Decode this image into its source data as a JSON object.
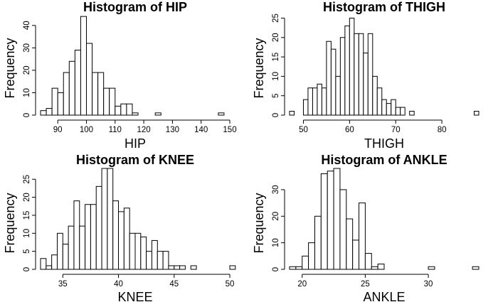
{
  "chart_data": [
    {
      "type": "bar",
      "title": "Histogram of HIP",
      "xlabel": "HIP",
      "ylabel": "Frequency",
      "bin_width": 2,
      "bin_start": 84,
      "values": [
        2,
        3,
        12,
        10,
        19,
        24,
        29,
        44,
        32,
        19,
        19,
        12,
        12,
        4,
        5,
        5,
        1,
        0,
        0,
        0,
        1,
        0,
        0,
        0,
        0,
        0,
        0,
        0,
        0,
        0,
        0,
        1
      ],
      "xlim": [
        84,
        150
      ],
      "ylim": [
        0,
        45
      ],
      "xticks": [
        90,
        100,
        110,
        120,
        130,
        140,
        150
      ],
      "yticks": [
        0,
        10,
        20,
        30,
        40
      ],
      "grid": false
    },
    {
      "type": "bar",
      "title": "Histogram of THIGH",
      "xlabel": "THIGH",
      "ylabel": "Frequency",
      "bin_width": 1,
      "bin_start": 47,
      "values": [
        1,
        0,
        0,
        4,
        7,
        7,
        8,
        7,
        19,
        17,
        10,
        20,
        23,
        25,
        21,
        21,
        16,
        21,
        10,
        7,
        4,
        3,
        4,
        2,
        2,
        0,
        1,
        0,
        0,
        0,
        0,
        0,
        0,
        0,
        0,
        0,
        0,
        0,
        0,
        0,
        1
      ],
      "xlim": [
        47,
        88
      ],
      "ylim": [
        0,
        26
      ],
      "xticks": [
        50,
        60,
        70,
        80
      ],
      "yticks": [
        0,
        5,
        10,
        15,
        20,
        25
      ],
      "grid": false
    },
    {
      "type": "bar",
      "title": "Histogram of KNEE",
      "xlabel": "KNEE",
      "ylabel": "Frequency",
      "bin_width": 0.5,
      "bin_start": 33,
      "values": [
        3,
        1,
        4,
        10,
        7,
        12,
        19,
        12,
        18,
        18,
        23,
        28,
        28,
        19,
        16,
        17,
        10,
        10,
        9,
        5,
        8,
        5,
        5,
        1,
        1,
        1,
        0,
        1,
        0,
        0,
        0,
        0,
        0,
        0,
        1
      ],
      "xlim": [
        33,
        50
      ],
      "ylim": [
        0,
        28
      ],
      "xticks": [
        35,
        40,
        45,
        50
      ],
      "yticks": [
        0,
        5,
        10,
        15,
        20,
        25
      ],
      "grid": false
    },
    {
      "type": "bar",
      "title": "Histogram of ANKLE",
      "xlabel": "ANKLE",
      "ylabel": "Frequency",
      "bin_width": 0.5,
      "bin_start": 19,
      "values": [
        1,
        1,
        5,
        10,
        20,
        36,
        37,
        38,
        30,
        19,
        11,
        25,
        6,
        1,
        2,
        0,
        0,
        0,
        0,
        0,
        0,
        0,
        1,
        0,
        0,
        0,
        0,
        0,
        0,
        1
      ],
      "xlim": [
        19,
        34
      ],
      "ylim": [
        0,
        38
      ],
      "xticks": [
        20,
        25,
        30
      ],
      "yticks": [
        0,
        10,
        20,
        30
      ],
      "grid": false
    }
  ]
}
